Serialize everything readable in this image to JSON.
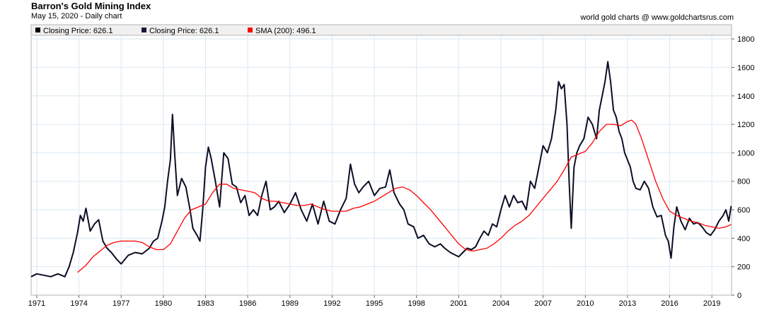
{
  "header": {
    "title": "Barron's Gold Mining Index",
    "subtitle": "May 15, 2020 - Daily chart",
    "credit": "world gold charts @ www.goldchartsrus.com"
  },
  "legend": [
    {
      "label": "Closing Price: 626.1",
      "color": "#000000"
    },
    {
      "label": "Closing Price: 626.1",
      "color": "#1a1a3a"
    },
    {
      "label": "SMA (200): 496.1",
      "color": "#ff0000"
    }
  ],
  "colors": {
    "price": "#0d0d25",
    "sma": "#ff0000",
    "grid": "#dbe8f2"
  },
  "chart_data": {
    "type": "line",
    "title": "Barron's Gold Mining Index",
    "xlim": [
      1970.6,
      2020.4
    ],
    "ylim": [
      0,
      1900
    ],
    "x_ticks": [
      1971,
      1974,
      1977,
      1980,
      1983,
      1986,
      1989,
      1992,
      1995,
      1998,
      2001,
      2004,
      2007,
      2010,
      2013,
      2016,
      2019
    ],
    "y_ticks": [
      0,
      200,
      400,
      600,
      800,
      1000,
      1200,
      1400,
      1600,
      1800
    ],
    "legend_position": "top-left",
    "grid": true,
    "series": [
      {
        "name": "Closing Price: 626.1",
        "x": [
          1970.6,
          1971.0,
          1971.5,
          1972.0,
          1972.5,
          1973.0,
          1973.3,
          1973.6,
          1973.9,
          1974.1,
          1974.3,
          1974.5,
          1974.8,
          1975.1,
          1975.4,
          1975.7,
          1976.0,
          1976.3,
          1976.7,
          1977.0,
          1977.5,
          1978.0,
          1978.5,
          1979.0,
          1979.3,
          1979.6,
          1979.9,
          1980.1,
          1980.3,
          1980.5,
          1980.65,
          1980.8,
          1981.0,
          1981.3,
          1981.6,
          1981.9,
          1982.1,
          1982.4,
          1982.6,
          1982.8,
          1983.0,
          1983.2,
          1983.4,
          1983.7,
          1984.0,
          1984.3,
          1984.6,
          1984.9,
          1985.2,
          1985.5,
          1985.8,
          1986.1,
          1986.4,
          1986.7,
          1987.0,
          1987.3,
          1987.6,
          1987.9,
          1988.2,
          1988.6,
          1989.0,
          1989.4,
          1989.8,
          1990.2,
          1990.6,
          1991.0,
          1991.4,
          1991.8,
          1992.2,
          1992.6,
          1993.0,
          1993.3,
          1993.6,
          1993.9,
          1994.2,
          1994.6,
          1995.0,
          1995.4,
          1995.8,
          1996.1,
          1996.4,
          1996.8,
          1997.1,
          1997.4,
          1997.8,
          1998.1,
          1998.5,
          1998.9,
          1999.3,
          1999.7,
          2000.0,
          2000.4,
          2000.8,
          2001.0,
          2001.3,
          2001.6,
          2001.9,
          2002.2,
          2002.5,
          2002.8,
          2003.1,
          2003.4,
          2003.7,
          2004.0,
          2004.3,
          2004.6,
          2004.9,
          2005.2,
          2005.5,
          2005.8,
          2006.1,
          2006.4,
          2006.7,
          2007.0,
          2007.3,
          2007.6,
          2007.9,
          2008.1,
          2008.3,
          2008.5,
          2008.7,
          2008.85,
          2009.0,
          2009.2,
          2009.4,
          2009.6,
          2009.9,
          2010.2,
          2010.5,
          2010.8,
          2011.0,
          2011.2,
          2011.4,
          2011.6,
          2011.8,
          2012.0,
          2012.2,
          2012.4,
          2012.6,
          2012.8,
          2013.0,
          2013.2,
          2013.4,
          2013.6,
          2013.9,
          2014.2,
          2014.5,
          2014.8,
          2015.1,
          2015.4,
          2015.7,
          2015.9,
          2016.1,
          2016.3,
          2016.5,
          2016.8,
          2017.1,
          2017.4,
          2017.7,
          2018.0,
          2018.3,
          2018.6,
          2018.9,
          2019.2,
          2019.5,
          2019.8,
          2020.0,
          2020.2,
          2020.37
        ],
        "y": [
          130,
          150,
          140,
          130,
          150,
          130,
          200,
          300,
          440,
          560,
          520,
          610,
          450,
          500,
          530,
          380,
          330,
          300,
          250,
          220,
          280,
          300,
          290,
          330,
          380,
          400,
          520,
          620,
          800,
          950,
          1270,
          1000,
          700,
          820,
          760,
          600,
          470,
          420,
          380,
          600,
          900,
          1040,
          960,
          800,
          620,
          1000,
          960,
          780,
          760,
          650,
          700,
          560,
          600,
          560,
          700,
          800,
          600,
          620,
          660,
          580,
          640,
          720,
          600,
          520,
          640,
          500,
          660,
          520,
          500,
          600,
          680,
          920,
          780,
          720,
          760,
          800,
          700,
          750,
          760,
          880,
          720,
          640,
          600,
          500,
          480,
          400,
          420,
          360,
          340,
          360,
          330,
          300,
          280,
          270,
          300,
          330,
          320,
          340,
          400,
          450,
          420,
          500,
          480,
          600,
          700,
          620,
          700,
          650,
          660,
          600,
          800,
          750,
          900,
          1050,
          1000,
          1100,
          1300,
          1500,
          1450,
          1480,
          1200,
          800,
          470,
          900,
          1000,
          1050,
          1100,
          1250,
          1200,
          1100,
          1300,
          1400,
          1500,
          1640,
          1500,
          1300,
          1250,
          1150,
          1100,
          1000,
          950,
          900,
          800,
          750,
          740,
          800,
          750,
          620,
          550,
          560,
          420,
          380,
          260,
          480,
          620,
          520,
          460,
          540,
          500,
          510,
          480,
          440,
          420,
          460,
          520,
          560,
          600,
          520,
          626
        ]
      },
      {
        "name": "SMA (200): 496.1",
        "x": [
          1973.9,
          1974.5,
          1975.0,
          1975.5,
          1976.0,
          1976.5,
          1977.0,
          1977.5,
          1978.0,
          1978.5,
          1979.0,
          1979.5,
          1980.0,
          1980.5,
          1981.0,
          1981.5,
          1982.0,
          1982.5,
          1983.0,
          1983.5,
          1984.0,
          1984.5,
          1985.0,
          1985.5,
          1986.0,
          1986.5,
          1987.0,
          1987.5,
          1988.0,
          1988.5,
          1989.0,
          1989.5,
          1990.0,
          1990.5,
          1991.0,
          1991.5,
          1992.0,
          1992.5,
          1993.0,
          1993.5,
          1994.0,
          1994.5,
          1995.0,
          1995.5,
          1996.0,
          1996.5,
          1997.0,
          1997.5,
          1998.0,
          1998.5,
          1999.0,
          1999.5,
          2000.0,
          2000.5,
          2001.0,
          2001.5,
          2002.0,
          2002.5,
          2003.0,
          2003.5,
          2004.0,
          2004.5,
          2005.0,
          2005.5,
          2006.0,
          2006.5,
          2007.0,
          2007.5,
          2008.0,
          2008.5,
          2009.0,
          2009.5,
          2010.0,
          2010.5,
          2011.0,
          2011.5,
          2012.0,
          2012.5,
          2013.0,
          2013.3,
          2013.6,
          2014.0,
          2014.5,
          2015.0,
          2015.5,
          2016.0,
          2016.5,
          2017.0,
          2017.5,
          2018.0,
          2018.5,
          2019.0,
          2019.5,
          2020.0,
          2020.37
        ],
        "y": [
          160,
          210,
          270,
          310,
          350,
          370,
          380,
          380,
          380,
          370,
          340,
          320,
          320,
          360,
          450,
          540,
          600,
          620,
          640,
          720,
          780,
          780,
          750,
          740,
          730,
          720,
          680,
          660,
          660,
          650,
          640,
          630,
          630,
          640,
          620,
          600,
          590,
          590,
          590,
          610,
          620,
          640,
          660,
          690,
          720,
          750,
          760,
          740,
          700,
          650,
          600,
          540,
          480,
          420,
          360,
          320,
          310,
          320,
          330,
          360,
          400,
          450,
          490,
          520,
          560,
          620,
          680,
          740,
          800,
          880,
          970,
          990,
          1010,
          1070,
          1150,
          1200,
          1200,
          1190,
          1220,
          1230,
          1200,
          1100,
          950,
          800,
          680,
          590,
          560,
          540,
          520,
          510,
          490,
          480,
          470,
          480,
          496
        ]
      }
    ]
  }
}
